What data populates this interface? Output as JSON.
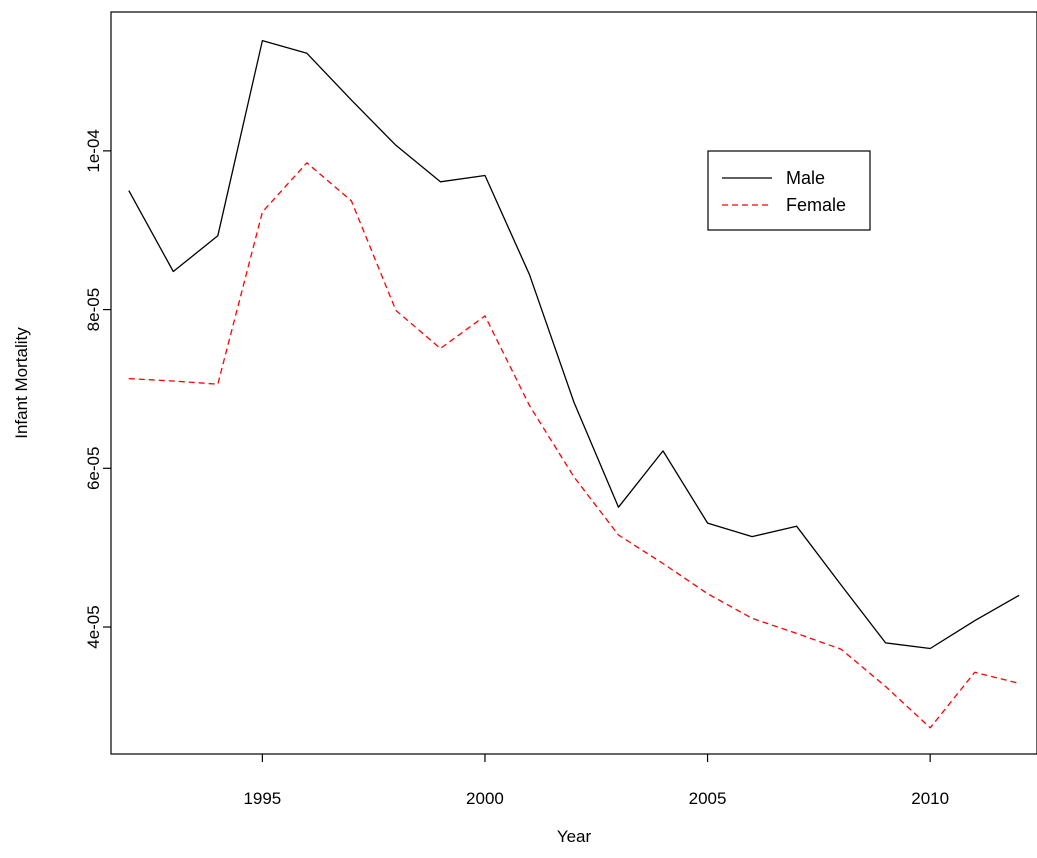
{
  "chart_data": {
    "type": "line",
    "xlabel": "Year",
    "ylabel": "Infant Mortality",
    "xlim": [
      1991.6,
      2012.4
    ],
    "ylim": [
      2.4e-05,
      0.0001175
    ],
    "xticks": [
      {
        "value": 1995,
        "label": "1995"
      },
      {
        "value": 2000,
        "label": "2000"
      },
      {
        "value": 2005,
        "label": "2005"
      },
      {
        "value": 2010,
        "label": "2010"
      }
    ],
    "yticks": [
      {
        "value": 4e-05,
        "label": "4e-05"
      },
      {
        "value": 6e-05,
        "label": "6e-05"
      },
      {
        "value": 8e-05,
        "label": "8e-05"
      },
      {
        "value": 0.0001,
        "label": "1e-04"
      }
    ],
    "x": [
      1992,
      1993,
      1994,
      1995,
      1996,
      1997,
      1998,
      1999,
      2000,
      2001,
      2002,
      2003,
      2004,
      2005,
      2006,
      2007,
      2008,
      2009,
      2010,
      2011,
      2012
    ],
    "series": [
      {
        "name": "Male",
        "color": "#000000",
        "dash": "solid",
        "values": [
          9.5e-05,
          8.48e-05,
          8.93e-05,
          0.0001139,
          0.0001123,
          0.0001064,
          0.0001007,
          9.61e-05,
          9.69e-05,
          8.44e-05,
          6.83e-05,
          5.51e-05,
          6.22e-05,
          5.31e-05,
          5.14e-05,
          5.27e-05,
          4.53e-05,
          3.8e-05,
          3.73e-05,
          4.08e-05,
          4.4e-05
        ]
      },
      {
        "name": "Female",
        "color": "#ff0000",
        "dash": "dashed",
        "values": [
          7.13e-05,
          7.1e-05,
          7.06e-05,
          9.23e-05,
          9.85e-05,
          9.37e-05,
          7.99e-05,
          7.51e-05,
          7.92e-05,
          6.79e-05,
          5.89e-05,
          5.16e-05,
          4.8e-05,
          4.42e-05,
          4.11e-05,
          3.92e-05,
          3.72e-05,
          3.25e-05,
          2.73e-05,
          3.43e-05,
          3.29e-05
        ]
      }
    ],
    "legend": {
      "position": "top-right",
      "entries": [
        {
          "label": "Male",
          "color": "#000000",
          "dash": "solid"
        },
        {
          "label": "Female",
          "color": "#ff0000",
          "dash": "dashed"
        }
      ]
    },
    "grid": false
  }
}
